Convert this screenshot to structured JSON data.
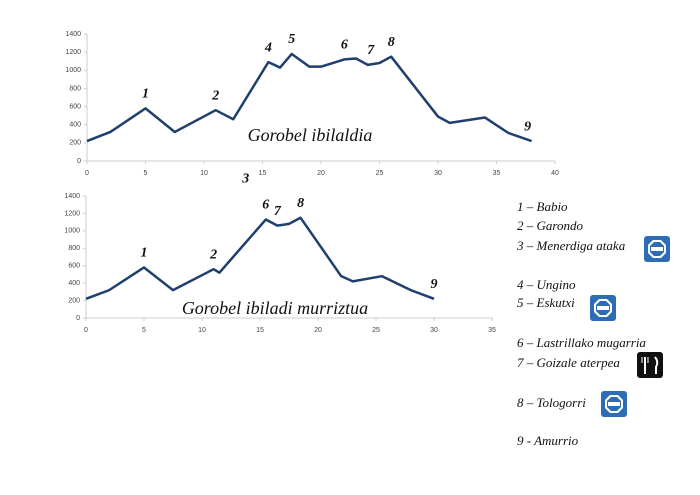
{
  "chart_data": [
    {
      "type": "line",
      "title": "Gorobel ibilaldia",
      "x": [
        0,
        2,
        5,
        7.5,
        11,
        12.5,
        15.5,
        16.5,
        17.5,
        19,
        20,
        22,
        23,
        24,
        25,
        26,
        30,
        31,
        34,
        36,
        38
      ],
      "values": [
        220,
        320,
        580,
        320,
        560,
        460,
        1090,
        1030,
        1180,
        1040,
        1040,
        1120,
        1130,
        1060,
        1080,
        1150,
        490,
        420,
        480,
        310,
        220
      ],
      "color": "#1f3f6e",
      "xlim": [
        0,
        40
      ],
      "xticks": [
        0,
        5,
        10,
        15,
        20,
        25,
        30,
        35,
        40
      ],
      "ylim": [
        0,
        1400
      ],
      "yticks": [
        0,
        200,
        400,
        600,
        800,
        1000,
        1200,
        1400
      ],
      "annotations": [
        "1",
        "2",
        "4",
        "5",
        "6",
        "7",
        "8",
        "9"
      ]
    },
    {
      "type": "line",
      "title": "Gorobel ibiladi murriztua",
      "x": [
        0,
        2,
        5,
        7.5,
        11,
        11.5,
        15.5,
        16.5,
        17.5,
        18.5,
        22,
        23,
        25.5,
        28,
        30
      ],
      "values": [
        220,
        320,
        580,
        320,
        560,
        520,
        1130,
        1060,
        1080,
        1150,
        480,
        420,
        480,
        320,
        220
      ],
      "color": "#1f3f6e",
      "xlim": [
        0,
        35
      ],
      "xticks": [
        0,
        5,
        10,
        15,
        20,
        25,
        30,
        35
      ],
      "ylim": [
        0,
        1400
      ],
      "yticks": [
        0,
        200,
        400,
        600,
        800,
        1000,
        1200,
        1400
      ],
      "annotations": [
        "1",
        "2",
        "3",
        "6",
        "7",
        "8",
        "9"
      ]
    }
  ],
  "route_points": [
    "1 – Babio",
    "2 – Garondo",
    "3 – Menerdiga ataka",
    "4 – Ungino",
    "5 – Eskutxi",
    "6 – Lastrillako mugarria",
    "7 – Goizale aterpea",
    "8 – Tologorri",
    "9 - Amurrio"
  ]
}
